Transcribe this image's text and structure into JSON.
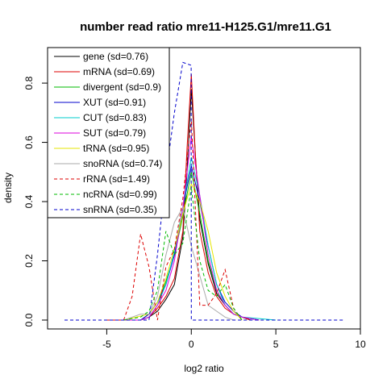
{
  "chart_data": {
    "type": "line",
    "title": "number read ratio mre11-H125.G1/mre11.G1",
    "xlabel": "log2 ratio",
    "ylabel": "density",
    "xlim": [
      -8.5,
      10
    ],
    "ylim": [
      -0.03,
      0.92
    ],
    "xticks": [
      -5,
      0,
      5,
      10
    ],
    "yticks": [
      0.0,
      0.2,
      0.4,
      0.6,
      0.8
    ],
    "legend_position": "top-left",
    "series": [
      {
        "name": "gene (sd=0.76)",
        "color": "#000000",
        "dash": "solid",
        "x": [
          -5,
          -3,
          -2.5,
          -2,
          -1.5,
          -1,
          -0.5,
          -0.25,
          0,
          0.25,
          0.5,
          1,
          1.5,
          2,
          2.5,
          3,
          3.5
        ],
        "y": [
          0,
          0,
          0.01,
          0.03,
          0.07,
          0.12,
          0.28,
          0.5,
          0.78,
          0.55,
          0.34,
          0.19,
          0.09,
          0.05,
          0.02,
          0.01,
          0
        ]
      },
      {
        "name": "mRNA (sd=0.69)",
        "color": "#dd0000",
        "dash": "solid",
        "x": [
          -5,
          -3,
          -2.5,
          -2,
          -1.5,
          -1,
          -0.5,
          -0.25,
          0,
          0.25,
          0.5,
          1,
          1.5,
          2,
          2.5,
          3,
          3.5
        ],
        "y": [
          0,
          0,
          0.01,
          0.04,
          0.08,
          0.14,
          0.3,
          0.58,
          0.83,
          0.55,
          0.3,
          0.16,
          0.08,
          0.04,
          0.02,
          0.01,
          0
        ]
      },
      {
        "name": "divergent (sd=0.9)",
        "color": "#00bb00",
        "dash": "solid",
        "x": [
          -5,
          -3,
          -2.5,
          -2,
          -1.5,
          -1,
          -0.5,
          0,
          0.5,
          1,
          1.5,
          2,
          2.5,
          3,
          4
        ],
        "y": [
          0,
          0,
          0.02,
          0.06,
          0.13,
          0.22,
          0.35,
          0.5,
          0.36,
          0.2,
          0.1,
          0.05,
          0.02,
          0.01,
          0
        ]
      },
      {
        "name": "XUT (sd=0.91)",
        "color": "#0000cc",
        "dash": "solid",
        "x": [
          -5,
          -3,
          -2.5,
          -2,
          -1.5,
          -1,
          -0.5,
          0,
          0.5,
          1,
          1.5,
          2,
          2.5,
          3,
          4
        ],
        "y": [
          0,
          0,
          0.02,
          0.06,
          0.12,
          0.22,
          0.38,
          0.52,
          0.4,
          0.25,
          0.12,
          0.06,
          0.03,
          0.01,
          0
        ]
      },
      {
        "name": "CUT (sd=0.83)",
        "color": "#00cccc",
        "dash": "solid",
        "x": [
          -5,
          -3,
          -2.5,
          -2,
          -1.5,
          -1,
          -0.5,
          0,
          0.5,
          1,
          1.5,
          2,
          2.5,
          3,
          4,
          5
        ],
        "y": [
          0,
          0,
          0.01,
          0.05,
          0.12,
          0.23,
          0.38,
          0.55,
          0.42,
          0.25,
          0.12,
          0.05,
          0.02,
          0.01,
          0.005,
          0
        ]
      },
      {
        "name": "SUT (sd=0.79)",
        "color": "#dd00dd",
        "dash": "solid",
        "x": [
          -5,
          -3,
          -2.5,
          -2,
          -1.5,
          -1,
          -0.5,
          0,
          0.5,
          1,
          1.5,
          2,
          2.5,
          3,
          4
        ],
        "y": [
          0,
          0,
          0.01,
          0.05,
          0.1,
          0.2,
          0.38,
          0.62,
          0.42,
          0.22,
          0.1,
          0.05,
          0.02,
          0.01,
          0
        ]
      },
      {
        "name": "tRNA (sd=0.95)",
        "color": "#e6e600",
        "dash": "solid",
        "x": [
          -4,
          -2.5,
          -2,
          -1.5,
          -1,
          -0.5,
          0,
          0.5,
          1,
          1.5,
          2,
          2.5,
          3
        ],
        "y": [
          0,
          0.02,
          0.06,
          0.14,
          0.24,
          0.36,
          0.46,
          0.4,
          0.3,
          0.16,
          0.08,
          0.03,
          0
        ]
      },
      {
        "name": "snoRNA (sd=0.74)",
        "color": "#aaaaaa",
        "dash": "solid",
        "x": [
          -4,
          -3.5,
          -3,
          -2.5,
          -2,
          -1.5,
          -1,
          -0.5,
          0,
          0.5,
          1,
          1.5,
          2,
          2.5
        ],
        "y": [
          0,
          0.01,
          0.02,
          0.02,
          0.08,
          0.22,
          0.33,
          0.38,
          0.25,
          0.15,
          0.05,
          0.03,
          0.01,
          0
        ]
      },
      {
        "name": "rRNA (sd=1.49)",
        "color": "#dd0000",
        "dash": "dashed",
        "x": [
          -5,
          -4,
          -3.5,
          -3,
          -2.5,
          -2,
          -1.5,
          -1,
          -0.5,
          0,
          0.5,
          1,
          1.5,
          2,
          2.5,
          3
        ],
        "y": [
          0,
          0,
          0.08,
          0.29,
          0.18,
          0.0,
          0.18,
          0.24,
          0.41,
          0.68,
          0.05,
          0.05,
          0.09,
          0.17,
          0.04,
          0
        ]
      },
      {
        "name": "ncRNA (sd=0.99)",
        "color": "#00bb00",
        "dash": "dashed",
        "x": [
          -4,
          -3,
          -2.5,
          -2,
          -1.5,
          -1,
          -0.5,
          0,
          0.5,
          1,
          1.5,
          2,
          2.5,
          3
        ],
        "y": [
          0,
          0.01,
          0.03,
          0.1,
          0.3,
          0.22,
          0.26,
          0.45,
          0.2,
          0.1,
          0.08,
          0.12,
          0.04,
          0
        ]
      },
      {
        "name": "snRNA (sd=0.35)",
        "color": "#0000cc",
        "dash": "dashed",
        "x": [
          -7.5,
          -2.5,
          -2,
          -1.5,
          -1,
          -0.5,
          -0.01,
          0,
          9
        ],
        "y": [
          0,
          0,
          0.22,
          0.49,
          0.7,
          0.87,
          0.86,
          0,
          0
        ]
      }
    ]
  }
}
